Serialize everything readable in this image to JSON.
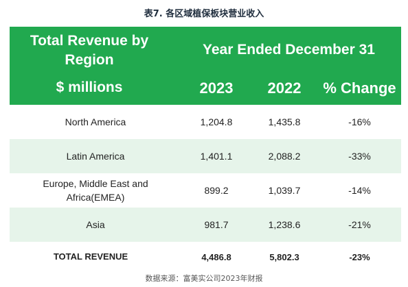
{
  "caption": "表7. 各区域植保板块营业收入",
  "header": {
    "title_line1": "Total Revenue by",
    "title_line2": "Region",
    "units": "$ millions",
    "period": "Year Ended December 31",
    "col_2023": "2023",
    "col_2022": "2022",
    "col_change": "% Change"
  },
  "rows": [
    {
      "region": "North America",
      "v2023": "1,204.8",
      "v2022": "1,435.8",
      "change": "-16%"
    },
    {
      "region": "Latin America",
      "v2023": "1,401.1",
      "v2022": "2,088.2",
      "change": "-33%"
    },
    {
      "region_line1": "Europe, Middle East and",
      "region_line2": "Africa(EMEA)",
      "v2023": "899.2",
      "v2022": "1,039.7",
      "change": "-14%"
    },
    {
      "region": "Asia",
      "v2023": "981.7",
      "v2022": "1,238.6",
      "change": "-21%"
    }
  ],
  "total": {
    "label": "TOTAL REVENUE",
    "v2023": "4,486.8",
    "v2022": "5,802.3",
    "change": "-23%"
  },
  "footer": "数据来源：富美实公司2023年财报",
  "colors": {
    "header_bg": "#21a94f",
    "alt_row_bg": "#e6f4ea",
    "header_text": "#ffffff"
  }
}
